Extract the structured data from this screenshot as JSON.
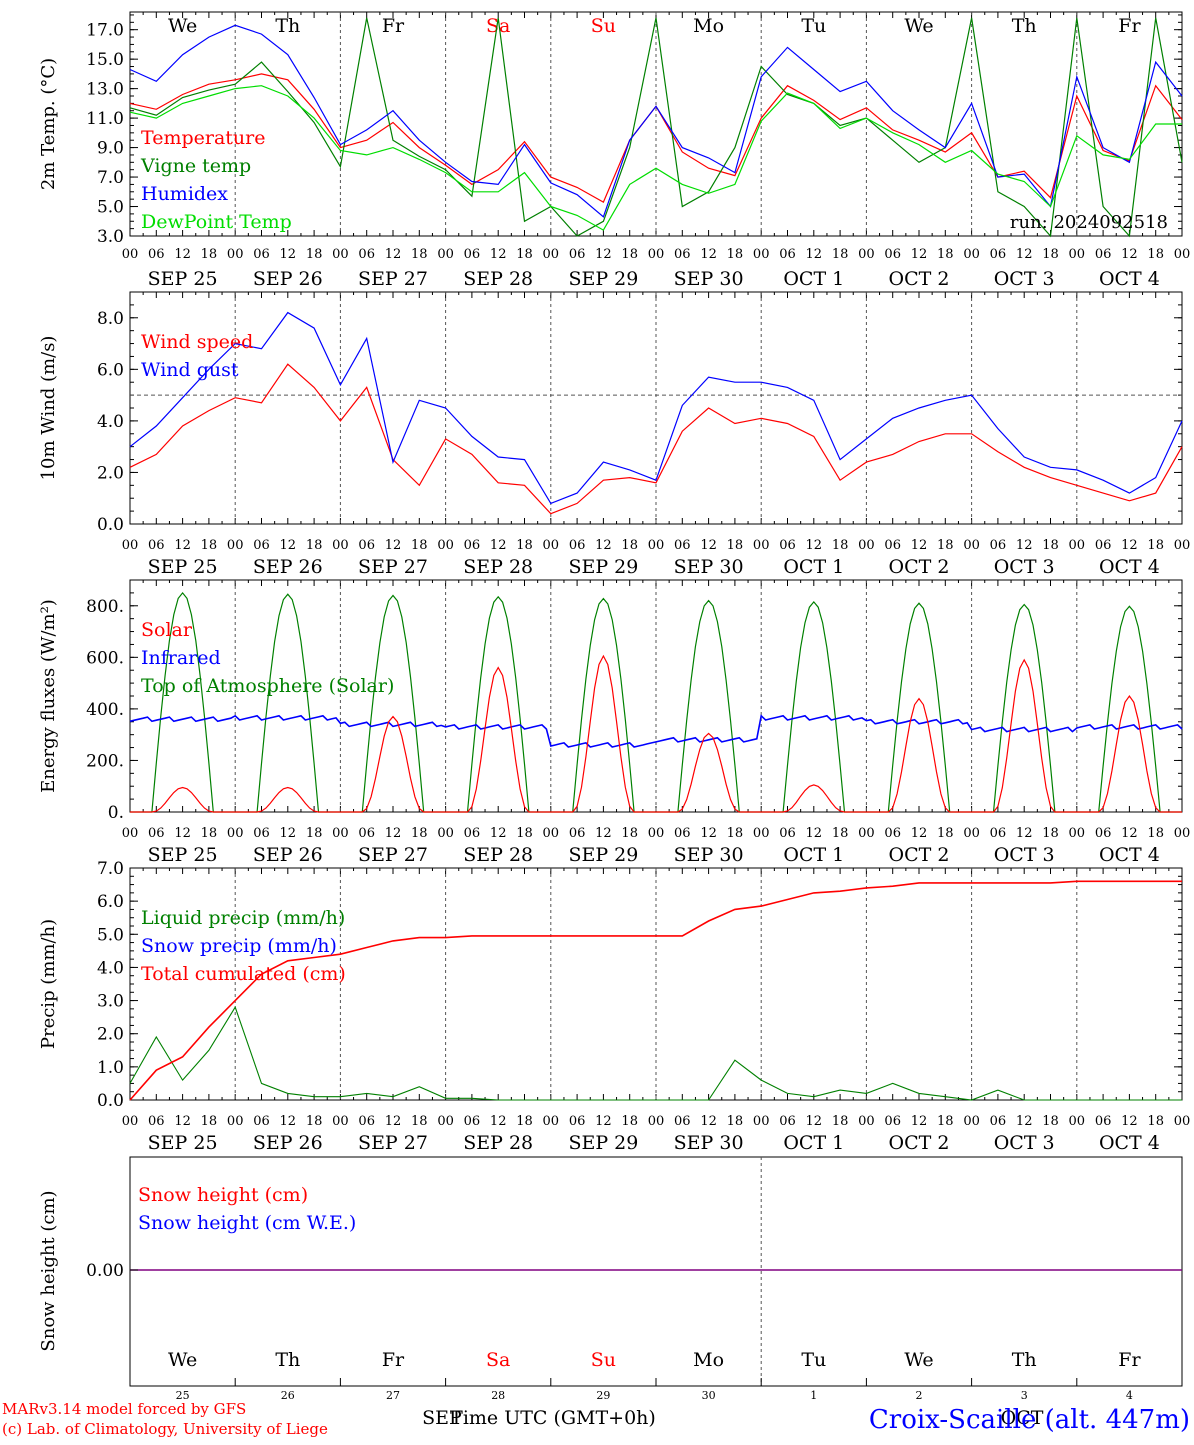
{
  "days": [
    "We",
    "Th",
    "Fr",
    "Sa",
    "Su",
    "Mo",
    "Tu",
    "We",
    "Th",
    "Fr"
  ],
  "weekend_days": [
    "Sa",
    "Su"
  ],
  "dates": [
    "SEP 25",
    "SEP 26",
    "SEP 27",
    "SEP 28",
    "SEP 29",
    "SEP 30",
    "OCT  1",
    "OCT  2",
    "OCT  3",
    "OCT  4"
  ],
  "hour_ticks": [
    "00",
    "06",
    "12",
    "18"
  ],
  "last_hour_tick": "00",
  "run_label": "run: 2024092518",
  "colors": {
    "red": "#ff0000",
    "green": "#008000",
    "blue": "#0000ff",
    "lightgreen": "#00dd00",
    "purple": "#800080"
  },
  "chart_data": [
    {
      "id": "temperature",
      "type": "line",
      "ylabel": "2m Temp. (°C)",
      "ylim": [
        3.0,
        18.2
      ],
      "yticks": [
        "3.0",
        "5.0",
        "7.0",
        "9.0",
        "11.0",
        "13.0",
        "15.0",
        "17.0"
      ],
      "ytick_values": [
        3,
        5,
        7,
        9,
        11,
        13,
        15,
        17
      ],
      "x_hours": [
        0,
        6,
        12,
        18,
        24,
        30,
        36,
        42,
        48,
        54,
        60,
        66,
        72,
        78,
        84,
        90,
        96,
        102,
        108,
        114,
        120,
        126,
        132,
        138,
        144,
        150,
        156,
        162,
        168,
        174,
        180,
        186,
        192,
        198,
        204,
        210,
        216,
        222,
        228,
        234,
        240
      ],
      "series": [
        {
          "name": "Temperature",
          "color": "red",
          "values": [
            12.0,
            11.6,
            12.6,
            13.3,
            13.6,
            14.0,
            13.6,
            11.6,
            9.0,
            9.5,
            10.7,
            9.0,
            7.8,
            6.5,
            7.5,
            9.4,
            7.0,
            6.3,
            5.3,
            9.5,
            11.8,
            8.7,
            7.6,
            7.1,
            11.0,
            13.2,
            12.2,
            10.9,
            11.7,
            10.2,
            9.5,
            8.7,
            10.0,
            7.0,
            7.4,
            5.6,
            12.5,
            8.8,
            8.1,
            13.2,
            10.9
          ]
        },
        {
          "name": "Vigne temp",
          "color": "green",
          "values": [
            11.7,
            11.2,
            12.4,
            12.9,
            13.3,
            14.8,
            12.8,
            10.7,
            7.7,
            17.8,
            9.5,
            8.4,
            7.5,
            5.7,
            17.8,
            4.0,
            5.0,
            3.0,
            4.0,
            9.0,
            17.8,
            5.0,
            6.0,
            9.0,
            14.5,
            12.6,
            12.0,
            10.5,
            11.0,
            9.5,
            8.0,
            9.0,
            17.8,
            6.0,
            5.0,
            3.0,
            17.8,
            5.0,
            3.0,
            17.8,
            8.0
          ]
        },
        {
          "name": "Humidex",
          "color": "blue",
          "values": [
            14.3,
            13.5,
            15.3,
            16.5,
            17.3,
            16.7,
            15.3,
            12.4,
            9.2,
            10.2,
            11.5,
            9.5,
            8.0,
            6.7,
            6.5,
            9.2,
            6.6,
            5.8,
            4.3,
            9.5,
            11.8,
            9.0,
            8.3,
            7.3,
            13.8,
            15.8,
            14.3,
            12.8,
            13.5,
            11.5,
            10.2,
            9.0,
            12.0,
            7.0,
            7.2,
            5.0,
            13.8,
            9.0,
            8.0,
            14.8,
            12.5
          ]
        },
        {
          "name": "DewPoint Temp",
          "color": "lightgreen",
          "values": [
            11.4,
            11.0,
            12.0,
            12.5,
            13.0,
            13.2,
            12.5,
            11.0,
            8.8,
            8.5,
            9.0,
            8.2,
            7.3,
            6.0,
            6.0,
            7.3,
            5.0,
            4.4,
            3.4,
            6.5,
            7.6,
            6.5,
            5.9,
            6.5,
            10.8,
            12.7,
            12.0,
            10.3,
            11.0,
            10.0,
            9.2,
            8.0,
            8.8,
            7.2,
            6.7,
            5.0,
            9.8,
            8.5,
            8.2,
            10.6,
            10.6
          ]
        }
      ]
    },
    {
      "id": "wind",
      "type": "line",
      "ylabel": "10m Wind (m/s)",
      "ylim": [
        0.0,
        9.0
      ],
      "yticks": [
        "0.0",
        "2.0",
        "4.0",
        "6.0",
        "8.0"
      ],
      "ytick_values": [
        0,
        2,
        4,
        6,
        8
      ],
      "reference_line": 5.0,
      "x_hours": [
        0,
        6,
        12,
        18,
        24,
        30,
        36,
        42,
        48,
        54,
        60,
        66,
        72,
        78,
        84,
        90,
        96,
        102,
        108,
        114,
        120,
        126,
        132,
        138,
        144,
        150,
        156,
        162,
        168,
        174,
        180,
        186,
        192,
        198,
        204,
        210,
        216,
        222,
        228,
        234,
        240
      ],
      "series": [
        {
          "name": "Wind speed",
          "color": "red",
          "values": [
            2.2,
            2.7,
            3.8,
            4.4,
            4.9,
            4.7,
            6.2,
            5.3,
            4.0,
            5.3,
            2.5,
            1.5,
            3.3,
            2.7,
            1.6,
            1.5,
            0.4,
            0.8,
            1.7,
            1.8,
            1.6,
            3.6,
            4.5,
            3.9,
            4.1,
            3.9,
            3.4,
            1.7,
            2.4,
            2.7,
            3.2,
            3.5,
            3.5,
            2.8,
            2.2,
            1.8,
            1.5,
            1.2,
            0.9,
            1.2,
            3.0
          ]
        },
        {
          "name": "Wind gust",
          "color": "blue",
          "values": [
            3.0,
            3.8,
            4.9,
            6.0,
            7.0,
            6.8,
            8.2,
            7.6,
            5.4,
            7.2,
            2.4,
            4.8,
            4.5,
            3.4,
            2.6,
            2.5,
            0.8,
            1.2,
            2.4,
            2.1,
            1.7,
            4.6,
            5.7,
            5.5,
            5.5,
            5.3,
            4.8,
            2.5,
            3.3,
            4.1,
            4.5,
            4.8,
            5.0,
            3.7,
            2.6,
            2.2,
            2.1,
            1.7,
            1.2,
            1.8,
            4.0
          ]
        }
      ]
    },
    {
      "id": "energy",
      "type": "line",
      "ylabel": "Energy fluxes (W/m²)",
      "ylim": [
        0,
        900
      ],
      "yticks": [
        "0.",
        "200.",
        "400.",
        "600.",
        "800."
      ],
      "ytick_values": [
        0,
        200,
        400,
        600,
        800
      ],
      "toa_peaks": [
        850,
        845,
        840,
        835,
        828,
        820,
        815,
        810,
        805,
        798
      ],
      "solar_peaks": [
        95,
        95,
        370,
        560,
        605,
        305,
        105,
        440,
        590,
        450
      ],
      "infrared_level": [
        360,
        365,
        340,
        330,
        260,
        280,
        365,
        350,
        320,
        330
      ],
      "series": [
        {
          "name": "Solar",
          "color": "red"
        },
        {
          "name": "Infrared",
          "color": "blue"
        },
        {
          "name": "Top of Atmosphere (Solar)",
          "color": "green"
        }
      ]
    },
    {
      "id": "precip",
      "type": "line",
      "ylabel": "Precip (mm/h)",
      "ylim": [
        0.0,
        7.0
      ],
      "yticks": [
        "0.0",
        "1.0",
        "2.0",
        "3.0",
        "4.0",
        "5.0",
        "6.0",
        "7.0"
      ],
      "ytick_values": [
        0,
        1,
        2,
        3,
        4,
        5,
        6,
        7
      ],
      "x_hours": [
        0,
        6,
        12,
        18,
        24,
        30,
        36,
        42,
        48,
        54,
        60,
        66,
        72,
        78,
        84,
        90,
        96,
        102,
        108,
        114,
        120,
        126,
        132,
        138,
        144,
        150,
        156,
        162,
        168,
        174,
        180,
        186,
        192,
        198,
        204,
        210,
        216,
        222,
        228,
        234,
        240
      ],
      "series": [
        {
          "name": "Liquid precip (mm/h)",
          "color": "green",
          "values": [
            0.5,
            1.9,
            0.6,
            1.5,
            2.8,
            0.5,
            0.2,
            0.1,
            0.1,
            0.2,
            0.1,
            0.4,
            0.05,
            0.05,
            0.0,
            0.0,
            0.0,
            0.0,
            0.0,
            0.0,
            0.0,
            0.0,
            0.0,
            1.2,
            0.6,
            0.2,
            0.1,
            0.3,
            0.2,
            0.5,
            0.2,
            0.1,
            0.0,
            0.3,
            0.0,
            0.0,
            0.0,
            0.0,
            0.0,
            0.0,
            0.0
          ]
        },
        {
          "name": "Snow precip (mm/h)",
          "color": "blue",
          "values": []
        },
        {
          "name": "Total cumulated (cm)",
          "color": "red",
          "values": [
            0.0,
            0.9,
            1.3,
            2.2,
            3.0,
            3.8,
            4.2,
            4.3,
            4.4,
            4.6,
            4.8,
            4.9,
            4.9,
            4.95,
            4.95,
            4.95,
            4.95,
            4.95,
            4.95,
            4.95,
            4.95,
            4.95,
            5.4,
            5.75,
            5.85,
            6.05,
            6.25,
            6.3,
            6.4,
            6.45,
            6.55,
            6.55,
            6.55,
            6.55,
            6.55,
            6.55,
            6.6,
            6.6,
            6.6,
            6.6,
            6.6
          ]
        }
      ]
    },
    {
      "id": "snow",
      "type": "line",
      "ylabel": "Snow height (cm)",
      "yticks": [
        "0.00"
      ],
      "series": [
        {
          "name": "Snow height (cm)",
          "color": "red",
          "values": [
            0.0
          ]
        },
        {
          "name": "Snow height (cm W.E.)",
          "color": "blue",
          "values": [
            0.0
          ]
        }
      ]
    }
  ],
  "footer": {
    "day_numbers": [
      "25",
      "26",
      "27",
      "28",
      "29",
      "30",
      "1",
      "2",
      "3",
      "4"
    ],
    "sep_label": "SEP",
    "oct_label": "OCT",
    "xlabel": "Time UTC (GMT+0h)",
    "credit1": "MARv3.14 model forced by GFS",
    "credit2": "(c) Lab. of Climatology, University of Liege",
    "station": "Croix-Scaille (alt. 447m)"
  }
}
